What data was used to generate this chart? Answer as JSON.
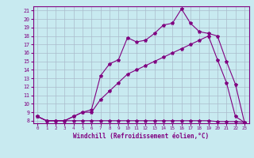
{
  "background_color": "#c8eaf0",
  "line_color": "#800080",
  "grid_color": "#aabbcc",
  "xlabel": "Windchill (Refroidissement éolien,°C)",
  "xlim": [
    -0.5,
    23.5
  ],
  "ylim": [
    7.7,
    21.5
  ],
  "xticks": [
    0,
    1,
    2,
    3,
    4,
    5,
    6,
    7,
    8,
    9,
    10,
    11,
    12,
    13,
    14,
    15,
    16,
    17,
    18,
    19,
    20,
    21,
    22,
    23
  ],
  "yticks": [
    8,
    9,
    10,
    11,
    12,
    13,
    14,
    15,
    16,
    17,
    18,
    19,
    20,
    21
  ],
  "line1_x": [
    0,
    1,
    2,
    3,
    4,
    5,
    6,
    7,
    8,
    9,
    10,
    11,
    12,
    13,
    14,
    15,
    16,
    17,
    18,
    19,
    20,
    21,
    22,
    23
  ],
  "line1_y": [
    8.5,
    8.0,
    8.0,
    8.0,
    8.0,
    8.0,
    8.0,
    8.0,
    8.0,
    8.0,
    8.0,
    8.0,
    8.0,
    8.0,
    8.0,
    8.0,
    8.0,
    8.0,
    8.0,
    8.0,
    7.9,
    7.9,
    7.9,
    7.8
  ],
  "line2_x": [
    0,
    1,
    2,
    3,
    4,
    5,
    6,
    7,
    8,
    9,
    10,
    11,
    12,
    13,
    14,
    15,
    16,
    17,
    18,
    19,
    20,
    21,
    22,
    23
  ],
  "line2_y": [
    8.5,
    8.0,
    8.0,
    8.0,
    8.5,
    9.0,
    9.0,
    10.5,
    11.5,
    12.5,
    13.5,
    14.0,
    14.5,
    15.0,
    15.5,
    16.0,
    16.5,
    17.0,
    17.5,
    18.0,
    15.2,
    12.5,
    8.5,
    7.8
  ],
  "line3_x": [
    0,
    1,
    2,
    3,
    4,
    5,
    6,
    7,
    8,
    9,
    10,
    11,
    12,
    13,
    14,
    15,
    16,
    17,
    18,
    19,
    20,
    21,
    22,
    23
  ],
  "line3_y": [
    8.5,
    8.0,
    8.0,
    8.0,
    8.5,
    9.0,
    9.3,
    13.3,
    14.7,
    15.2,
    17.8,
    17.3,
    17.5,
    18.3,
    19.3,
    19.5,
    21.2,
    19.5,
    18.5,
    18.3,
    18.0,
    15.0,
    12.3,
    7.8
  ]
}
